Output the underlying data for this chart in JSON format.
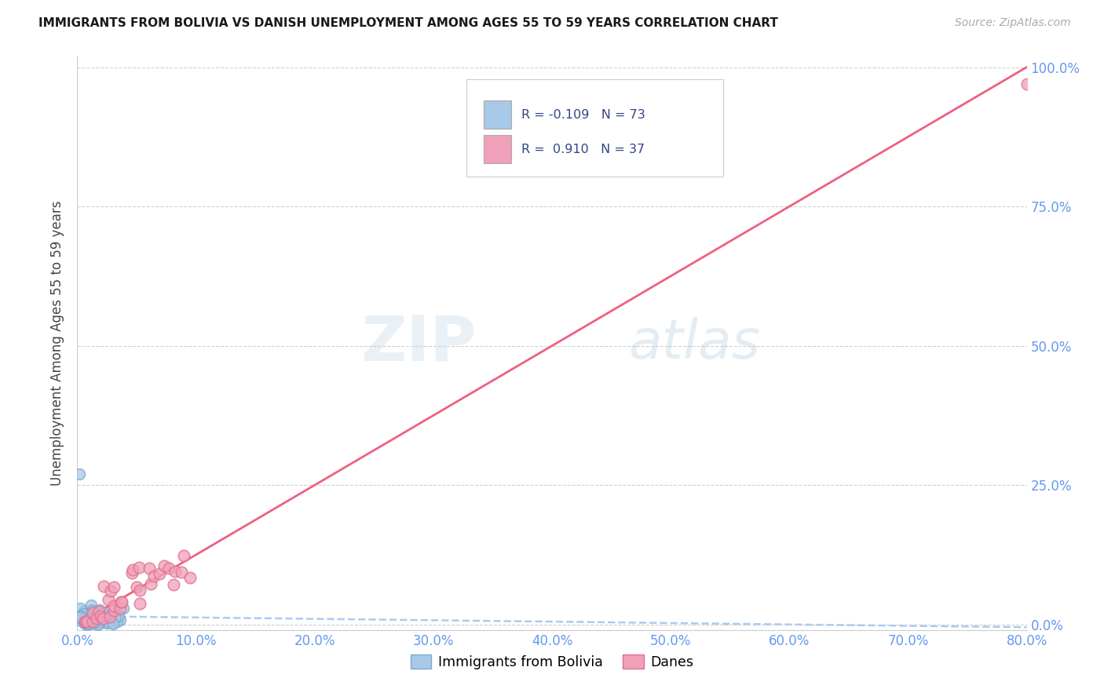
{
  "title": "IMMIGRANTS FROM BOLIVIA VS DANISH UNEMPLOYMENT AMONG AGES 55 TO 59 YEARS CORRELATION CHART",
  "source": "Source: ZipAtlas.com",
  "ylabel_label": "Unemployment Among Ages 55 to 59 years",
  "watermark_zip": "ZIP",
  "watermark_atlas": "atlas",
  "bolivia_color": "#a8c8e8",
  "bolivia_edge": "#7aaad0",
  "danes_color": "#f0a0b8",
  "danes_edge": "#e07090",
  "trendline_bolivia_color": "#aaccee",
  "trendline_danes_color": "#f06080",
  "grid_color": "#cccccc",
  "background_color": "#ffffff",
  "tick_color": "#6699ee",
  "legend_sq1_color": "#a8c8e8",
  "legend_sq2_color": "#f0a0b8",
  "legend_text_color": "#334488",
  "bolivia_R": "-0.109",
  "bolivia_N": "73",
  "danes_R": "0.910",
  "danes_N": "37"
}
